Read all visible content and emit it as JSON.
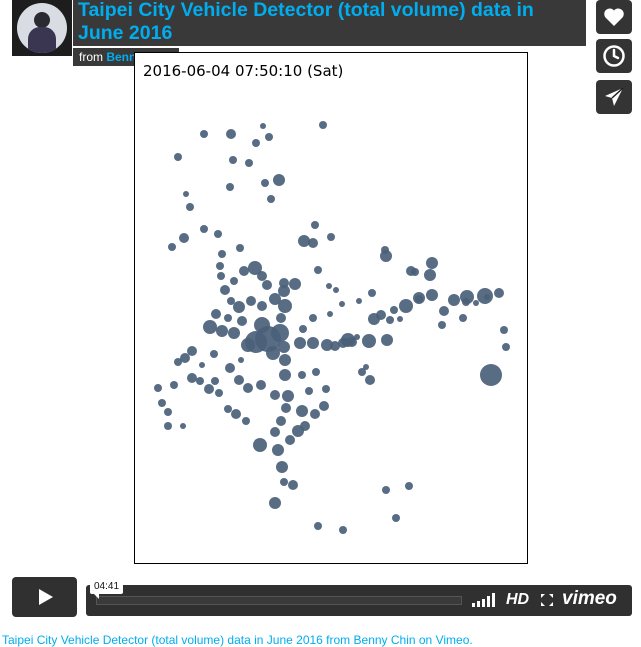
{
  "video": {
    "title": "Taipei City Vehicle Detector (total volume) data in June 2016",
    "byline_prefix": "from",
    "author": "Benny Chin",
    "timestamp": "2016-06-04 07:50:10 (Sat)",
    "timecode": "04:41",
    "hd_label": "HD",
    "brand_label": "vimeo",
    "footer_text": "Taipei City Vehicle Detector (total volume) data in June 2016 from Benny Chin on Vimeo."
  },
  "side_buttons": [
    {
      "name": "like-button",
      "icon": "heart-icon"
    },
    {
      "name": "watch-later-button",
      "icon": "clock-icon"
    },
    {
      "name": "share-button",
      "icon": "paper-plane-icon"
    }
  ],
  "colors": {
    "accent": "#00adef",
    "bubble": "#4a5f78",
    "panel": "#1e1e1e"
  }
}
